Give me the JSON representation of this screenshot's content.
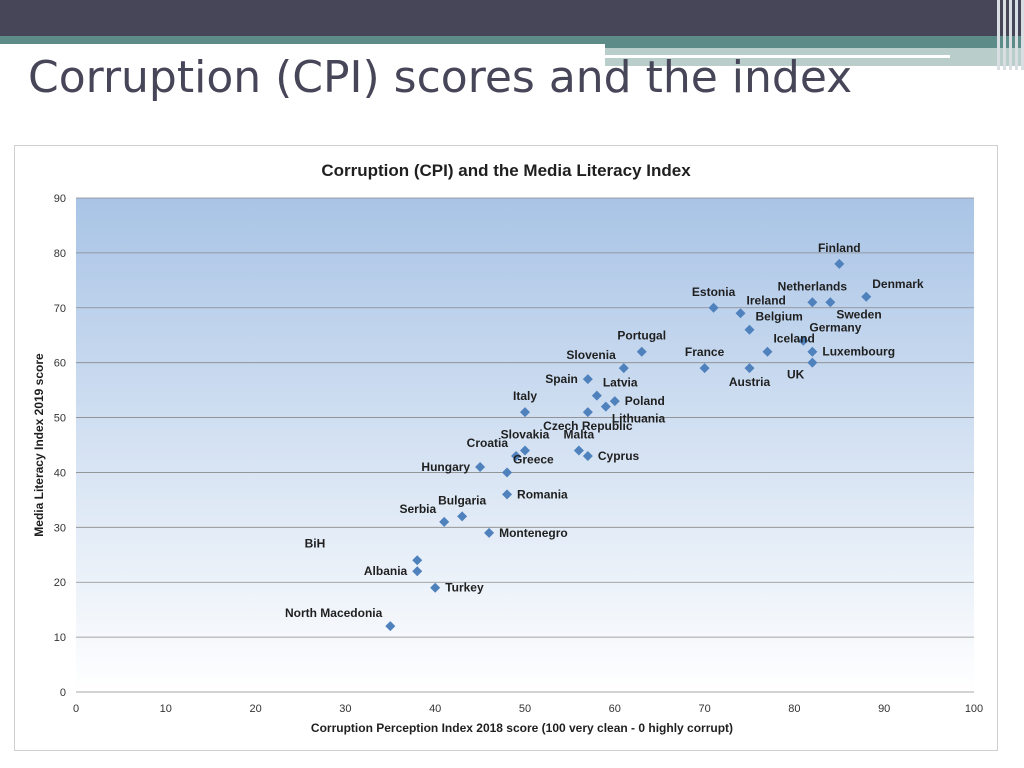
{
  "slide": {
    "title": "Corruption (CPI) scores and the index"
  },
  "colors": {
    "header_dark": "#474558",
    "header_teal": "#5d8c88",
    "marker": "#4f81bd",
    "plot_gradient_top": "#a9c4e6",
    "plot_gradient_bottom": "#ffffff"
  },
  "chart_data": {
    "type": "scatter",
    "title": "Corruption (CPI) and the Media Literacy Index",
    "xlabel": "Corruption  Perception Index 2018 score (100 very clean - 0 highly corrupt)",
    "ylabel": "Media Literacy Index 2019 score",
    "xlim": [
      0,
      100
    ],
    "ylim": [
      0,
      90
    ],
    "xticks": [
      0,
      10,
      20,
      30,
      40,
      50,
      60,
      70,
      80,
      90,
      100
    ],
    "yticks": [
      0,
      10,
      20,
      30,
      40,
      50,
      60,
      70,
      80,
      90
    ],
    "grid": "horizontal",
    "marker": "diamond",
    "points": [
      {
        "label": "Finland",
        "x": 85,
        "y": 78,
        "pos": "above"
      },
      {
        "label": "Denmark",
        "x": 88,
        "y": 72,
        "pos": "upper-right"
      },
      {
        "label": "Netherlands",
        "x": 82,
        "y": 71,
        "pos": "above"
      },
      {
        "label": "Sweden",
        "x": 84,
        "y": 71,
        "pos": "lower-right"
      },
      {
        "label": "Estonia",
        "x": 71,
        "y": 70,
        "pos": "above"
      },
      {
        "label": "Ireland",
        "x": 74,
        "y": 69,
        "pos": "upper-right"
      },
      {
        "label": "Belgium",
        "x": 75,
        "y": 66,
        "pos": "upper-right"
      },
      {
        "label": "Germany",
        "x": 81,
        "y": 64,
        "pos": "upper-right"
      },
      {
        "label": "Iceland",
        "x": 77,
        "y": 62,
        "pos": "upper-right"
      },
      {
        "label": "Luxembourg",
        "x": 82,
        "y": 62,
        "pos": "right"
      },
      {
        "label": "Portugal",
        "x": 63,
        "y": 62,
        "pos": "above"
      },
      {
        "label": "France",
        "x": 70,
        "y": 59,
        "pos": "above"
      },
      {
        "label": "UK",
        "x": 82,
        "y": 60,
        "pos": "lower-left"
      },
      {
        "label": "Austria",
        "x": 75,
        "y": 59,
        "pos": "below"
      },
      {
        "label": "Slovenia",
        "x": 61,
        "y": 59,
        "pos": "upper-left"
      },
      {
        "label": "Spain",
        "x": 57,
        "y": 57,
        "pos": "left"
      },
      {
        "label": "Latvia",
        "x": 58,
        "y": 54,
        "pos": "upper-right"
      },
      {
        "label": "Poland",
        "x": 60,
        "y": 53,
        "pos": "right"
      },
      {
        "label": "Lithuania",
        "x": 59,
        "y": 52,
        "pos": "lower-right"
      },
      {
        "label": "Italy",
        "x": 50,
        "y": 51,
        "pos": "above"
      },
      {
        "label": "Czech Republic",
        "x": 57,
        "y": 51,
        "pos": "below"
      },
      {
        "label": "Malta",
        "x": 56,
        "y": 44,
        "pos": "above"
      },
      {
        "label": "Cyprus",
        "x": 57,
        "y": 43,
        "pos": "right"
      },
      {
        "label": "Slovakia",
        "x": 50,
        "y": 44,
        "pos": "above"
      },
      {
        "label": "Croatia",
        "x": 49,
        "y": 43,
        "pos": "upper-left"
      },
      {
        "label": "Greece",
        "x": 48,
        "y": 40,
        "pos": "upper-right"
      },
      {
        "label": "Hungary",
        "x": 45,
        "y": 41,
        "pos": "left"
      },
      {
        "label": "Romania",
        "x": 48,
        "y": 36,
        "pos": "right"
      },
      {
        "label": "Bulgaria",
        "x": 43,
        "y": 32,
        "pos": "above"
      },
      {
        "label": "Serbia",
        "x": 41,
        "y": 31,
        "pos": "upper-left"
      },
      {
        "label": "Montenegro",
        "x": 46,
        "y": 29,
        "pos": "right"
      },
      {
        "label": "BiH",
        "x": 38,
        "y": 24,
        "pos": "far-upper-left"
      },
      {
        "label": "Albania",
        "x": 38,
        "y": 22,
        "pos": "left"
      },
      {
        "label": "Turkey",
        "x": 40,
        "y": 19,
        "pos": "right"
      },
      {
        "label": "North Macedonia",
        "x": 35,
        "y": 12,
        "pos": "upper-left"
      }
    ]
  }
}
